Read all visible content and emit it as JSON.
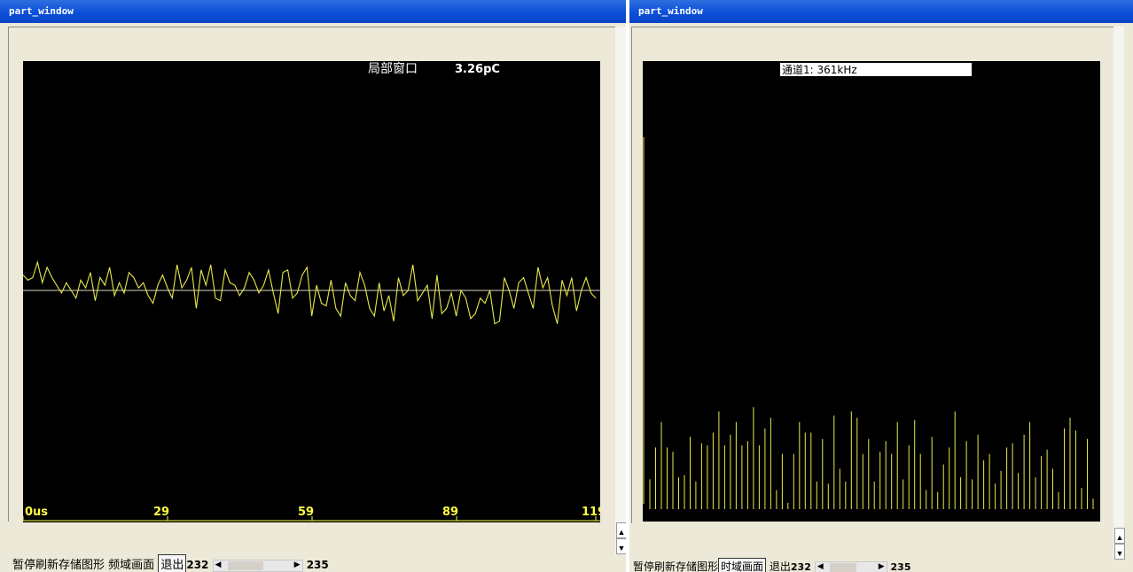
{
  "left_window": {
    "title": "part_window",
    "plot": {
      "header_label": "局部窗口",
      "header_value": "3.26pC",
      "x_ticks": [
        "0us",
        "29",
        "59",
        "89",
        "119"
      ]
    },
    "toolbar": {
      "pause_refresh": "暂停刷新",
      "save_graph": "存储图形",
      "freq_view": "频域画面",
      "exit": "退出",
      "range_start": "232",
      "range_end": "235"
    }
  },
  "right_window": {
    "title": "part_window",
    "plot": {
      "channel_label": "通道1: 361kHz"
    },
    "toolbar": {
      "pause_refresh": "暂停刷新",
      "save_graph": "存储图形",
      "time_view": "时域画面",
      "exit": "退出",
      "range_start": "232",
      "range_end": "235"
    }
  },
  "colors": {
    "plot_bg": "#000000",
    "trace": "#e8e84a",
    "tick_text": "#ffff40",
    "titlebar": "#0a4fd8"
  },
  "icons": [
    "scroll-left-icon",
    "scroll-right-icon",
    "scroll-up-icon",
    "scroll-down-icon"
  ],
  "chart_data": [
    {
      "type": "line",
      "x": [
        0,
        1,
        2,
        3,
        4,
        5,
        6,
        7,
        8,
        9,
        10,
        11,
        12,
        13,
        14,
        15,
        16,
        17,
        18,
        19,
        20,
        21,
        22,
        23,
        24,
        25,
        26,
        27,
        28,
        29,
        30,
        31,
        32,
        33,
        34,
        35,
        36,
        37,
        38,
        39,
        40,
        41,
        42,
        43,
        44,
        45,
        46,
        47,
        48,
        49,
        50,
        51,
        52,
        53,
        54,
        55,
        56,
        57,
        58,
        59,
        60,
        61,
        62,
        63,
        64,
        65,
        66,
        67,
        68,
        69,
        70,
        71,
        72,
        73,
        74,
        75,
        76,
        77,
        78,
        79,
        80,
        81,
        82,
        83,
        84,
        85,
        86,
        87,
        88,
        89,
        90,
        91,
        92,
        93,
        94,
        95,
        96,
        97,
        98,
        99,
        100,
        101,
        102,
        103,
        104,
        105,
        106,
        107,
        108,
        109,
        110,
        111,
        112,
        113,
        114,
        115,
        116,
        117,
        118,
        119
      ],
      "values": [
        12,
        8,
        10,
        22,
        6,
        18,
        10,
        4,
        -2,
        6,
        0,
        -6,
        8,
        2,
        14,
        -8,
        10,
        4,
        18,
        -4,
        6,
        -2,
        14,
        10,
        2,
        6,
        -4,
        -10,
        4,
        12,
        2,
        -6,
        20,
        2,
        8,
        18,
        -14,
        16,
        4,
        20,
        -6,
        -8,
        16,
        6,
        4,
        -4,
        2,
        14,
        8,
        -2,
        4,
        16,
        -2,
        -18,
        14,
        16,
        -6,
        -2,
        12,
        18,
        -20,
        4,
        -10,
        -12,
        8,
        -14,
        -20,
        6,
        -4,
        -8,
        14,
        4,
        -14,
        -20,
        6,
        -16,
        -4,
        -24,
        10,
        -4,
        0,
        20,
        -8,
        -2,
        4,
        -22,
        12,
        -18,
        -14,
        -2,
        -20,
        0,
        -6,
        -22,
        -18,
        -6,
        -10,
        0,
        -26,
        -24,
        10,
        0,
        -14,
        6,
        10,
        -2,
        -14,
        18,
        2,
        10,
        -12,
        -26,
        8,
        -4,
        10,
        -16,
        0,
        10,
        -2,
        -6
      ],
      "xlabel": "",
      "ylabel": "",
      "x_tick_labels": [
        "0us",
        "29",
        "59",
        "89",
        "119"
      ],
      "baseline": 0,
      "grid": false
    },
    {
      "type": "bar",
      "title": "通道1: 361kHz",
      "values": [
        28,
        58,
        82,
        58,
        54,
        30,
        32,
        68,
        26,
        62,
        60,
        72,
        92,
        60,
        70,
        82,
        60,
        64,
        96,
        60,
        76,
        86,
        18,
        52,
        6,
        52,
        82,
        72,
        72,
        26,
        66,
        24,
        88,
        38,
        26,
        92,
        86,
        52,
        66,
        26,
        54,
        64,
        52,
        82,
        28,
        60,
        84,
        52,
        18,
        68,
        16,
        42,
        58,
        92,
        30,
        64,
        28,
        70,
        46,
        52,
        24,
        36,
        58,
        62,
        34,
        70,
        82,
        30,
        50,
        56,
        38,
        16,
        76,
        86,
        74,
        20,
        66,
        10
      ]
    }
  ]
}
